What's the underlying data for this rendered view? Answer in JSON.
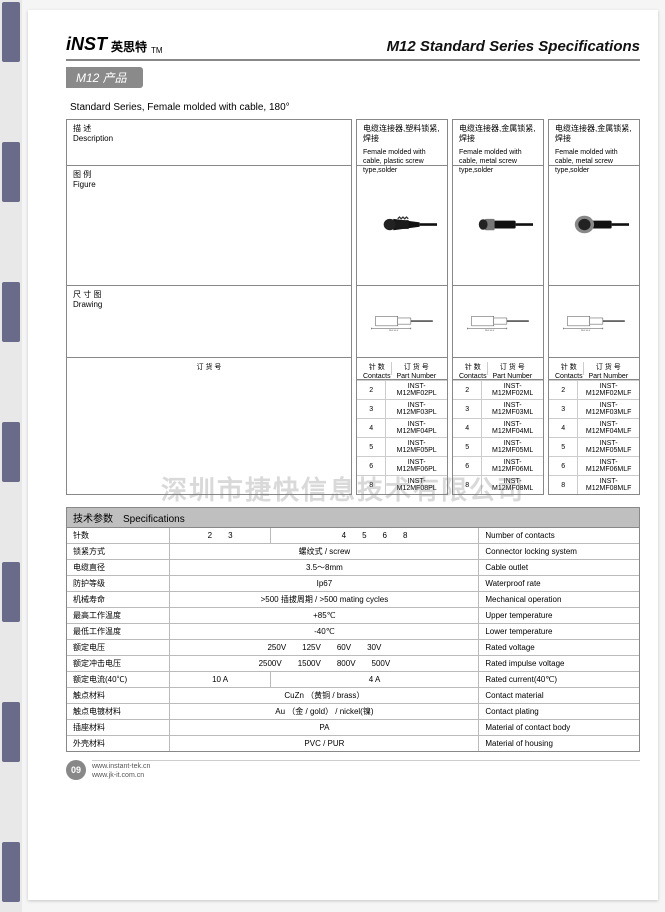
{
  "logo": {
    "mark": "iNST",
    "cn": "英思特",
    "tm": "TM"
  },
  "title": "M12 Standard Series Specifications",
  "badge": "M12 产品",
  "subtitle": "Standard Series, Female molded with cable, 180°",
  "watermark": "深圳市捷快信息技术有限公司",
  "labels": {
    "desc_cn": "描 述",
    "desc_en": "Description",
    "fig_cn": "图 例",
    "fig_en": "Figure",
    "draw_cn": "尺 寸 图",
    "draw_en": "Drawing",
    "contacts_cn": "针 数",
    "contacts_en": "Contacts",
    "pn_cn": "订 货 号",
    "pn_en": "Part Number"
  },
  "variants": [
    {
      "desc_cn": "电缆连接器,塑料锁紧,焊接",
      "desc_en": "Female molded with cable, plastic screw type,solder",
      "parts": [
        [
          "2",
          "INST-M12MF02PL"
        ],
        [
          "3",
          "INST-M12MF03PL"
        ],
        [
          "4",
          "INST-M12MF04PL"
        ],
        [
          "5",
          "INST-M12MF05PL"
        ],
        [
          "6",
          "INST-M12MF06PL"
        ],
        [
          "8",
          "INST-M12MF08PL"
        ]
      ]
    },
    {
      "desc_cn": "电缆连接器,金属锁紧,焊接",
      "desc_en": "Female molded with cable, metal screw type,solder",
      "parts": [
        [
          "2",
          "INST-M12MF02ML"
        ],
        [
          "3",
          "INST-M12MF03ML"
        ],
        [
          "4",
          "INST-M12MF04ML"
        ],
        [
          "5",
          "INST-M12MF05ML"
        ],
        [
          "6",
          "INST-M12MF06ML"
        ],
        [
          "8",
          "INST-M12MF08ML"
        ]
      ]
    },
    {
      "desc_cn": "电缆连接器,金属锁紧,焊接",
      "desc_en": "Female molded with cable, metal screw type,solder",
      "parts": [
        [
          "2",
          "INST-M12MF02MLF"
        ],
        [
          "3",
          "INST-M12MF03MLF"
        ],
        [
          "4",
          "INST-M12MF04MLF"
        ],
        [
          "5",
          "INST-M12MF05MLF"
        ],
        [
          "6",
          "INST-M12MF06MLF"
        ],
        [
          "8",
          "INST-M12MF08MLF"
        ]
      ]
    }
  ],
  "specs": {
    "head_cn": "技术参数",
    "head_en": "Specifications",
    "rows": [
      {
        "label": "针数",
        "cols": [
          "2　　3",
          "4　　5　　6　　8"
        ],
        "en": "Number of contacts"
      },
      {
        "label": "锁紧方式",
        "cols": [
          "螺纹式 / screw"
        ],
        "en": "Connector locking system"
      },
      {
        "label": "电缆直径",
        "cols": [
          "3.5～8mm"
        ],
        "en": "Cable outlet"
      },
      {
        "label": "防护等级",
        "cols": [
          "Ip67"
        ],
        "en": "Waterproof rate"
      },
      {
        "label": "机械寿命",
        "cols": [
          ">500 插拔周期 / >500 mating cycles"
        ],
        "en": "Mechanical operation"
      },
      {
        "label": "最高工作温度",
        "cols": [
          "+85℃"
        ],
        "en": "Upper temperature"
      },
      {
        "label": "最低工作温度",
        "cols": [
          "-40℃"
        ],
        "en": "Lower temperature"
      },
      {
        "label": "额定电压",
        "cols": [
          "250V　　125V　　60V　　30V"
        ],
        "en": "Rated voltage"
      },
      {
        "label": "额定冲击电压",
        "cols": [
          "2500V　　1500V　　800V　　500V"
        ],
        "en": "Rated impulse voltage"
      },
      {
        "label": "额定电流(40℃)",
        "cols": [
          "10 A",
          "4 A"
        ],
        "en": "Rated current(40℃)"
      },
      {
        "label": "触点材料",
        "cols": [
          "CuZn （黄铜 / brass）"
        ],
        "en": "Contact material"
      },
      {
        "label": "触点电镀材料",
        "cols": [
          "Au （金 / gold） / nickel(镍)"
        ],
        "en": "Contact plating"
      },
      {
        "label": "插座材料",
        "cols": [
          "PA"
        ],
        "en": "Material of contact body"
      },
      {
        "label": "外壳材料",
        "cols": [
          "PVC / PUR"
        ],
        "en": "Material of housing"
      }
    ]
  },
  "footer": {
    "page": "09",
    "url1": "www.instant-tek.cn",
    "url2": "www.jk-it.com.cn"
  },
  "colors": {
    "badge_bg": "#8a8a8a",
    "border": "#888888",
    "spec_head": "#bfbfbf"
  }
}
